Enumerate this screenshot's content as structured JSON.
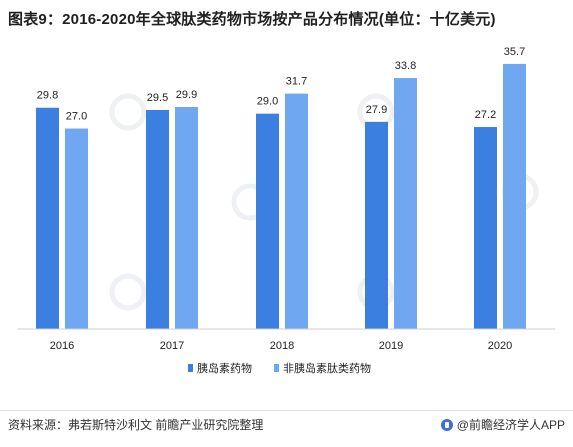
{
  "title": "图表9：2016-2020年全球肽类药物市场按产品分布情况(单位：十亿美元)",
  "chart_data": {
    "type": "bar",
    "title": "图表9：2016-2020年全球肽类药物市场按产品分布情况(单位：十亿美元)",
    "categories": [
      "2016",
      "2017",
      "2018",
      "2019",
      "2020"
    ],
    "series": [
      {
        "name": "胰岛素药物",
        "values": [
          29.8,
          29.5,
          29.0,
          27.9,
          27.2
        ],
        "color": "#3b7fe0"
      },
      {
        "name": "非胰岛素肽类药物",
        "values": [
          27.0,
          29.9,
          31.7,
          33.8,
          35.7
        ],
        "color": "#6fa8f0"
      }
    ],
    "value_labels": [
      [
        "29.8",
        "29.5",
        "29.0",
        "27.9",
        "27.2"
      ],
      [
        "27.0",
        "29.9",
        "31.7",
        "33.8",
        "35.7"
      ]
    ],
    "ylim": [
      0,
      40
    ],
    "grid": false,
    "legend_position": "bottom"
  },
  "footer": {
    "source": "资料来源：弗若斯特沙利文 前瞻产业研究院整理",
    "brand": "@前瞻经济学人APP",
    "brand_icon": "qianzhan-logo-icon"
  }
}
